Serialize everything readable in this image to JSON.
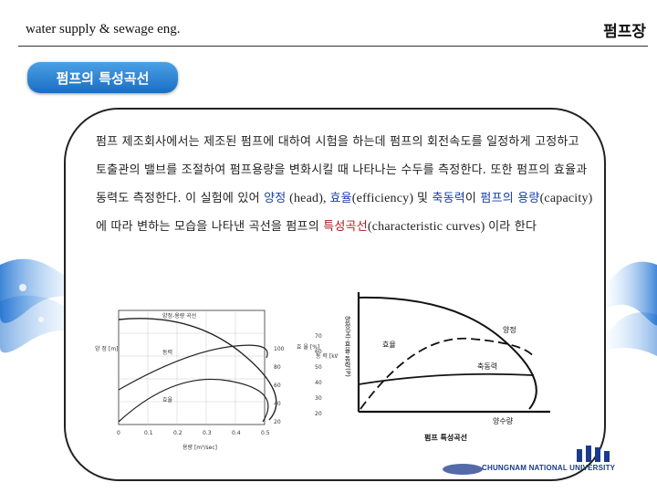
{
  "header": {
    "course": "water supply & sewage eng.",
    "section": "펌프장"
  },
  "badge": {
    "title": "펌프의 특성곡선"
  },
  "paragraph": {
    "p1": "펌프 제조회사에서는 제조된 펌프에 대하여 시험을 하는데 펌프의 회전속도를 일정하게 고정하고 토출관의 밸브를 조절하여 펌프용량을 변화시킬 때 나타나는 수두를 측정한다. 또한 펌프의 효율과 동력도 측정한다. 이 실험에 있어 ",
    "head": "양정",
    "head_en": " (head), ",
    "eff": "효율",
    "eff_en": "(efficiency) ",
    "and": "및 ",
    "power": "축동력",
    "p2": "이 ",
    "cap": "펌프의 용량",
    "cap_en": "(capacity) ",
    "p3": "에 따라 변하는 모습을 나타낸 곡선을 펌프의 ",
    "char": "특성곡선",
    "char_en": "(characteristic curves) ",
    "p4": "이라 한다"
  },
  "figure_left": {
    "curve_head": "양정-용량 곡선",
    "curve_power": "동력",
    "curve_eff": "효율",
    "ylabel_head": "양\n정\n[m]",
    "ylabel_eff": "효\n율\n[%]",
    "ylabel_power": "동\n력\n[kW]",
    "xlabel": "용량 [m³/sec]",
    "x_ticks": [
      "0",
      "0.1",
      "0.2",
      "0.3",
      "0.4",
      "0.5"
    ],
    "eff_ticks": [
      "100",
      "80",
      "60",
      "40",
      "20"
    ],
    "power_ticks": [
      "70",
      "60",
      "50",
      "40",
      "30",
      "20"
    ]
  },
  "figure_right": {
    "label_head": "양정",
    "label_eff": "효율",
    "label_power": "축동력",
    "ylabel": "양정(H)·효율·동력(P)",
    "xlabel": "양수량",
    "caption": "펌프 특성곡선"
  },
  "logo": {
    "university": "CHUNGNAM NATIONAL UNIVERSITY"
  },
  "colors": {
    "badge_top": "#4aa0e6",
    "badge_bottom": "#1a6ec4",
    "keyword_blue": "#1b3fb0",
    "keyword_red": "#b01818"
  }
}
